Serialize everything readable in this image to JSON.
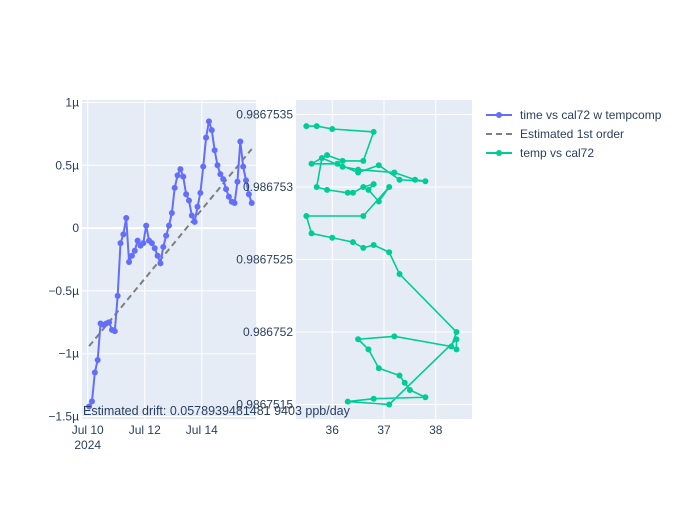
{
  "chart_data": [
    {
      "type": "line",
      "xlabel": "",
      "ylabel": "",
      "x_ticks": [
        "Jul 10\n2024",
        "Jul 12",
        "Jul 14"
      ],
      "y_ticks": [
        "−1.5µ",
        "−1µ",
        "−0.5µ",
        "0",
        "0.5µ",
        "1µ"
      ],
      "xlim_days": [
        9.8,
        15.9
      ],
      "ylim": [
        -1.52e-06,
        1.02e-06
      ],
      "annotation": "Estimated drift:  0.0578939481481 9403 ppb/day",
      "series": [
        {
          "name": "time vs cal72 w tempcomp",
          "color": "#636efa",
          "mode": "lines+markers",
          "x_days": [
            10.05,
            10.15,
            10.25,
            10.35,
            10.45,
            10.55,
            10.65,
            10.75,
            10.85,
            10.95,
            11.05,
            11.15,
            11.25,
            11.35,
            11.45,
            11.55,
            11.65,
            11.75,
            11.85,
            11.95,
            12.05,
            12.15,
            12.25,
            12.35,
            12.45,
            12.55,
            12.65,
            12.75,
            12.85,
            12.95,
            13.05,
            13.15,
            13.25,
            13.35,
            13.45,
            13.55,
            13.65,
            13.75,
            13.85,
            13.95,
            14.05,
            14.15,
            14.25,
            14.35,
            14.45,
            14.55,
            14.65,
            14.75,
            14.85,
            14.95,
            15.05,
            15.15,
            15.25,
            15.35,
            15.45,
            15.55,
            15.65,
            15.75
          ],
          "y": [
            -1.42e-06,
            -1.38e-06,
            -1.15e-06,
            -1.05e-06,
            -7.6e-07,
            -7.7e-07,
            -7.6e-07,
            -7.5e-07,
            -8.1e-07,
            -8.2e-07,
            -5.4e-07,
            -1.2e-07,
            -5e-08,
            8e-08,
            -2.7e-07,
            -2.2e-07,
            -1.8e-07,
            -1e-07,
            -1.4e-07,
            -1.2e-07,
            2e-08,
            -1e-07,
            -1.2e-07,
            -1.6e-07,
            -2.2e-07,
            -2.8e-07,
            -1.5e-07,
            -6e-08,
            2e-08,
            1.2e-07,
            3.2e-07,
            4.2e-07,
            4.7e-07,
            4.1e-07,
            2.7e-07,
            2.2e-07,
            1e-07,
            5e-08,
            1.7e-07,
            2.8e-07,
            4.9e-07,
            7.2e-07,
            8.5e-07,
            7.8e-07,
            6.2e-07,
            5e-07,
            4.3e-07,
            3.9e-07,
            3.1e-07,
            2.5e-07,
            2.1e-07,
            2e-07,
            3.7e-07,
            6.9e-07,
            4.9e-07,
            3.8e-07,
            2.7e-07,
            2e-07
          ]
        },
        {
          "name": "Estimated 1st order",
          "color": "#7f7f7f",
          "mode": "dash",
          "x_days": [
            10.05,
            15.75
          ],
          "y": [
            -9.4e-07,
            6.3e-07
          ]
        }
      ]
    },
    {
      "type": "line",
      "xlabel": "",
      "ylabel": "",
      "x_ticks": [
        "36",
        "37",
        "38"
      ],
      "y_ticks": [
        "0.9867515",
        "0.986752",
        "0.9867525",
        "0.986753",
        "0.9867535"
      ],
      "xlim": [
        35.3,
        38.7
      ],
      "ylim": [
        0.9867514,
        0.9867536
      ],
      "series": [
        {
          "name": "temp vs cal72",
          "color": "#00cc96",
          "mode": "lines+markers",
          "x": [
            35.5,
            35.7,
            36.0,
            36.8,
            36.6,
            36.2,
            35.9,
            35.6,
            36.1,
            36.5,
            36.9,
            37.3,
            37.8,
            37.6,
            37.2,
            36.5,
            36.2,
            35.8,
            35.7,
            35.9,
            36.3,
            36.4,
            36.6,
            36.8,
            36.7,
            36.9,
            37.1,
            36.6,
            35.5,
            35.6,
            36.0,
            36.4,
            36.6,
            36.8,
            37.1,
            37.3,
            38.4,
            38.3,
            37.2,
            36.5,
            36.7,
            36.9,
            37.3,
            37.4,
            37.5,
            37.8,
            36.8,
            36.3,
            37.1,
            38.4,
            38.4
          ],
          "y": [
            0.98675342,
            0.98675342,
            0.9867534,
            0.98675338,
            0.98675318,
            0.98675318,
            0.98675322,
            0.98675316,
            0.98675316,
            0.9867531,
            0.98675315,
            0.98675305,
            0.98675304,
            0.98675305,
            0.9867531,
            0.98675312,
            0.98675314,
            0.9867532,
            0.986753,
            0.98675298,
            0.98675296,
            0.98675296,
            0.986753,
            0.98675302,
            0.98675298,
            0.9867529,
            0.986753,
            0.9867528,
            0.9867528,
            0.98675268,
            0.98675265,
            0.98675262,
            0.98675258,
            0.9867526,
            0.98675255,
            0.9867524,
            0.986752,
            0.9867519,
            0.98675197,
            0.98675195,
            0.98675188,
            0.98675175,
            0.9867517,
            0.98675165,
            0.9867516,
            0.98675155,
            0.98675154,
            0.98675152,
            0.9867515,
            0.98675195,
            0.98675188
          ]
        }
      ]
    }
  ],
  "legend": [
    {
      "label": "time vs cal72 w tempcomp",
      "color": "#636efa",
      "kind": "marker-line"
    },
    {
      "label": "Estimated 1st order",
      "color": "#7f7f7f",
      "kind": "dash"
    },
    {
      "label": "temp vs cal72",
      "color": "#00cc96",
      "kind": "marker-line"
    }
  ]
}
